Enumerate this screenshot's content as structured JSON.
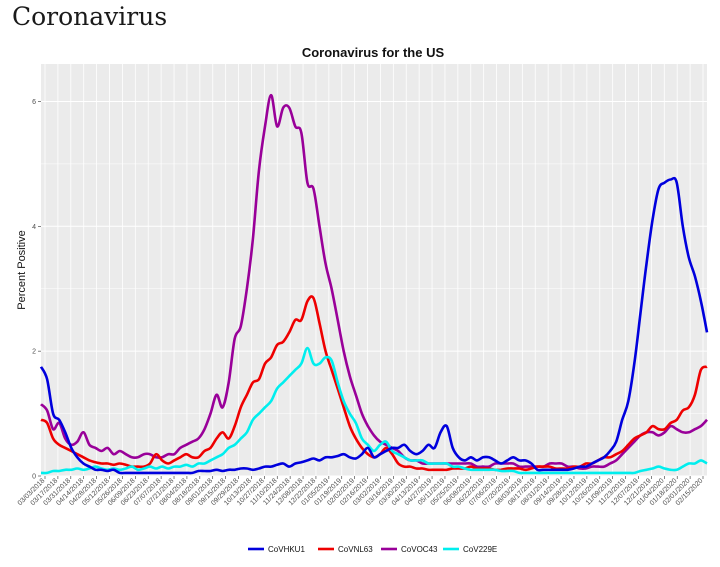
{
  "page": {
    "title": "Coronavirus"
  },
  "chart_data": {
    "type": "line",
    "title": "Coronavirus for the US",
    "xlabel": "",
    "ylabel": "Percent Positive",
    "ylim": [
      0,
      6.6
    ],
    "yticks": [
      0,
      2,
      4,
      6
    ],
    "grid": true,
    "legend_position": "bottom",
    "x_tick_labels": [
      "03/03/2018",
      "03/17/2018",
      "03/31/2018",
      "04/14/2018",
      "04/28/2018",
      "05/12/2018",
      "05/26/2018",
      "06/09/2018",
      "06/23/2018",
      "07/07/2018",
      "07/21/2018",
      "08/04/2018",
      "08/18/2018",
      "09/01/2018",
      "09/15/2018",
      "09/29/2018",
      "10/13/2018",
      "10/27/2018",
      "11/10/2018",
      "11/24/2018",
      "12/08/2018",
      "12/22/2018",
      "01/05/2019",
      "01/19/2019",
      "02/02/2019",
      "02/16/2019",
      "03/02/2019",
      "03/16/2019",
      "03/30/2019",
      "04/13/2019",
      "04/27/2019",
      "05/11/2019",
      "05/25/2019",
      "06/08/2019",
      "06/22/2019",
      "07/06/2019",
      "07/20/2019",
      "08/03/2019",
      "08/17/2019",
      "08/31/2019",
      "09/14/2019",
      "09/28/2019",
      "10/12/2019",
      "10/26/2019",
      "11/09/2019",
      "11/23/2019",
      "12/07/2019",
      "12/21/2019",
      "01/04/2020",
      "01/18/2020",
      "02/01/2020",
      "02/15/2020"
    ],
    "series": [
      {
        "name": "CoVHKU1",
        "color": "#0000dd",
        "values": [
          1.75,
          1.55,
          1.0,
          0.9,
          0.7,
          0.45,
          0.3,
          0.2,
          0.15,
          0.1,
          0.1,
          0.08,
          0.1,
          0.05,
          0.05,
          0.05,
          0.05,
          0.05,
          0.05,
          0.05,
          0.05,
          0.05,
          0.05,
          0.05,
          0.05,
          0.05,
          0.08,
          0.08,
          0.08,
          0.1,
          0.08,
          0.1,
          0.1,
          0.12,
          0.12,
          0.1,
          0.12,
          0.15,
          0.15,
          0.18,
          0.2,
          0.15,
          0.2,
          0.22,
          0.25,
          0.28,
          0.25,
          0.3,
          0.3,
          0.32,
          0.35,
          0.3,
          0.28,
          0.35,
          0.45,
          0.3,
          0.35,
          0.4,
          0.45,
          0.45,
          0.5,
          0.4,
          0.35,
          0.4,
          0.5,
          0.45,
          0.7,
          0.8,
          0.45,
          0.3,
          0.25,
          0.3,
          0.25,
          0.3,
          0.3,
          0.25,
          0.2,
          0.25,
          0.3,
          0.25,
          0.25,
          0.2,
          0.1,
          0.1,
          0.1,
          0.1,
          0.1,
          0.1,
          0.12,
          0.15,
          0.15,
          0.2,
          0.25,
          0.3,
          0.4,
          0.55,
          0.9,
          1.2,
          1.8,
          2.6,
          3.4,
          4.1,
          4.6,
          4.7,
          4.75,
          4.7,
          4.0,
          3.5,
          3.2,
          2.8,
          2.3
        ]
      },
      {
        "name": "CoVNL63",
        "color": "#ee0000",
        "values": [
          0.9,
          0.85,
          0.6,
          0.5,
          0.45,
          0.4,
          0.35,
          0.3,
          0.25,
          0.22,
          0.2,
          0.2,
          0.18,
          0.2,
          0.18,
          0.15,
          0.15,
          0.15,
          0.2,
          0.35,
          0.25,
          0.2,
          0.25,
          0.3,
          0.35,
          0.3,
          0.3,
          0.4,
          0.45,
          0.6,
          0.7,
          0.6,
          0.8,
          1.1,
          1.3,
          1.5,
          1.55,
          1.8,
          1.9,
          2.1,
          2.15,
          2.3,
          2.5,
          2.5,
          2.8,
          2.85,
          2.45,
          2.0,
          1.7,
          1.4,
          1.1,
          0.8,
          0.6,
          0.45,
          0.35,
          0.3,
          0.35,
          0.45,
          0.35,
          0.2,
          0.15,
          0.15,
          0.12,
          0.12,
          0.1,
          0.1,
          0.1,
          0.1,
          0.12,
          0.12,
          0.12,
          0.15,
          0.12,
          0.12,
          0.12,
          0.1,
          0.1,
          0.12,
          0.12,
          0.12,
          0.1,
          0.12,
          0.15,
          0.15,
          0.15,
          0.12,
          0.12,
          0.12,
          0.15,
          0.15,
          0.2,
          0.2,
          0.25,
          0.3,
          0.3,
          0.35,
          0.4,
          0.5,
          0.6,
          0.65,
          0.7,
          0.8,
          0.75,
          0.75,
          0.85,
          0.9,
          1.05,
          1.1,
          1.3,
          1.7,
          1.75
        ]
      },
      {
        "name": "CoVOC43",
        "color": "#990099",
        "values": [
          1.15,
          1.05,
          0.75,
          0.85,
          0.6,
          0.5,
          0.55,
          0.7,
          0.5,
          0.45,
          0.4,
          0.45,
          0.35,
          0.4,
          0.35,
          0.3,
          0.3,
          0.35,
          0.35,
          0.3,
          0.3,
          0.35,
          0.35,
          0.45,
          0.5,
          0.55,
          0.6,
          0.75,
          1.0,
          1.3,
          1.1,
          1.5,
          2.2,
          2.4,
          3.0,
          3.8,
          4.9,
          5.6,
          6.1,
          5.6,
          5.9,
          5.9,
          5.6,
          5.5,
          4.7,
          4.6,
          4.0,
          3.4,
          3.0,
          2.5,
          2.0,
          1.6,
          1.3,
          1.0,
          0.8,
          0.65,
          0.55,
          0.5,
          0.45,
          0.4,
          0.3,
          0.25,
          0.25,
          0.2,
          0.2,
          0.2,
          0.2,
          0.2,
          0.2,
          0.2,
          0.2,
          0.2,
          0.15,
          0.15,
          0.15,
          0.2,
          0.2,
          0.2,
          0.2,
          0.15,
          0.15,
          0.15,
          0.15,
          0.15,
          0.2,
          0.2,
          0.2,
          0.15,
          0.15,
          0.12,
          0.12,
          0.15,
          0.15,
          0.15,
          0.2,
          0.25,
          0.35,
          0.45,
          0.55,
          0.65,
          0.7,
          0.7,
          0.65,
          0.7,
          0.8,
          0.75,
          0.7,
          0.7,
          0.75,
          0.8,
          0.9
        ]
      },
      {
        "name": "CoV229E",
        "color": "#00eeee",
        "values": [
          0.05,
          0.05,
          0.08,
          0.08,
          0.1,
          0.1,
          0.12,
          0.1,
          0.12,
          0.15,
          0.12,
          0.1,
          0.12,
          0.1,
          0.12,
          0.15,
          0.1,
          0.12,
          0.15,
          0.12,
          0.15,
          0.12,
          0.15,
          0.15,
          0.18,
          0.15,
          0.2,
          0.2,
          0.25,
          0.3,
          0.35,
          0.45,
          0.5,
          0.6,
          0.7,
          0.9,
          1.0,
          1.1,
          1.2,
          1.4,
          1.5,
          1.6,
          1.7,
          1.8,
          2.05,
          1.8,
          1.8,
          1.9,
          1.85,
          1.5,
          1.2,
          1.0,
          0.85,
          0.6,
          0.5,
          0.4,
          0.5,
          0.55,
          0.4,
          0.35,
          0.3,
          0.25,
          0.25,
          0.25,
          0.2,
          0.2,
          0.2,
          0.2,
          0.15,
          0.15,
          0.12,
          0.1,
          0.1,
          0.1,
          0.1,
          0.1,
          0.08,
          0.08,
          0.08,
          0.05,
          0.05,
          0.05,
          0.05,
          0.05,
          0.05,
          0.05,
          0.05,
          0.05,
          0.05,
          0.05,
          0.05,
          0.05,
          0.05,
          0.05,
          0.05,
          0.05,
          0.05,
          0.05,
          0.05,
          0.08,
          0.1,
          0.12,
          0.15,
          0.12,
          0.1,
          0.1,
          0.15,
          0.2,
          0.2,
          0.25,
          0.2
        ]
      }
    ]
  }
}
